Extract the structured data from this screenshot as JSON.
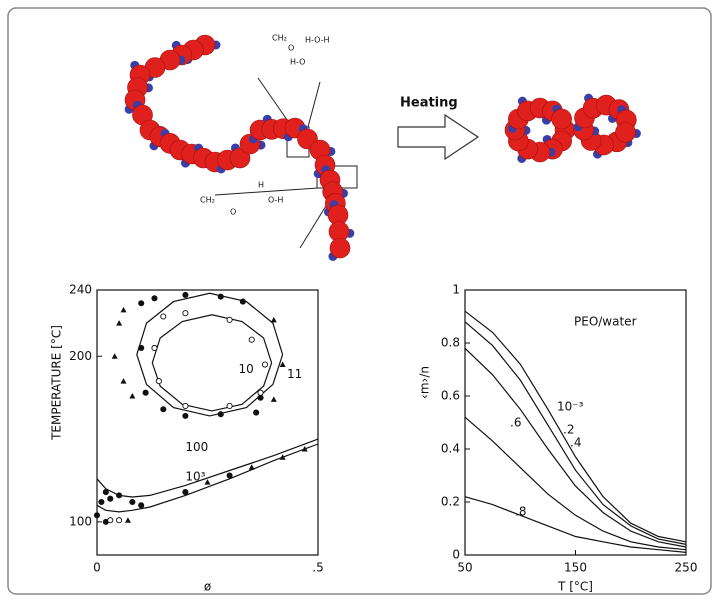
{
  "illustration": {
    "heating_label": "Heating",
    "top_fragments": [
      "CH₂",
      "O",
      "H-O-H",
      "H-O"
    ],
    "bottom_fragments": [
      "CH₂",
      "O",
      "H",
      "O-H"
    ]
  },
  "chart_data": [
    {
      "type": "scatter",
      "y_label": "TEMPERATURE [°C]",
      "x_label": "ø",
      "xlim": [
        0,
        0.5
      ],
      "ylim": [
        80,
        240
      ],
      "xticks": [
        0,
        {
          "value": 0.5,
          "label": ".5"
        }
      ],
      "yticks": [
        100,
        200,
        240
      ],
      "series": [
        {
          "name": "11",
          "mode": "line",
          "color": "#111111",
          "x": [
            0.42,
            0.398,
            0.338,
            0.255,
            0.173,
            0.112,
            0.09,
            0.112,
            0.173,
            0.255,
            0.338,
            0.398,
            0.42
          ],
          "values": [
            201,
            220,
            233,
            238,
            233,
            220,
            201,
            183,
            169,
            164,
            169,
            183,
            201
          ]
        },
        {
          "name": "10",
          "mode": "line",
          "color": "#111111",
          "x": [
            0.395,
            0.377,
            0.328,
            0.26,
            0.193,
            0.143,
            0.125,
            0.143,
            0.193,
            0.26,
            0.328,
            0.377,
            0.395
          ],
          "values": [
            196,
            211,
            221,
            225,
            221,
            211,
            196,
            182,
            171,
            167,
            171,
            182,
            196
          ]
        },
        {
          "name": "100",
          "mode": "line",
          "color": "#111111",
          "x": [
            0,
            0.02,
            0.05,
            0.08,
            0.12,
            0.2,
            0.3,
            0.4,
            0.5
          ],
          "values": [
            126,
            120,
            116,
            115,
            116,
            122,
            131,
            140,
            150
          ]
        },
        {
          "name": "10³",
          "mode": "line",
          "color": "#111111",
          "x": [
            0,
            0.02,
            0.05,
            0.08,
            0.12,
            0.2,
            0.3,
            0.4,
            0.5
          ],
          "values": [
            110,
            107,
            106,
            107,
            109,
            116,
            126,
            137,
            147
          ]
        },
        {
          "mode": "points",
          "marker": "circle",
          "color": "#111111",
          "x": [
            0.1,
            0.13,
            0.2,
            0.28,
            0.33,
            0.1,
            0.11,
            0.15,
            0.2,
            0.28,
            0.36,
            0.37,
            0.01,
            0.02,
            0.03,
            0.05,
            0.08,
            0.1,
            0.2,
            0.3,
            0,
            0.02
          ],
          "values": [
            232,
            235,
            237,
            236,
            233,
            205,
            178,
            168,
            164,
            165,
            166,
            175,
            112,
            118,
            114,
            116,
            112,
            110,
            118,
            128,
            104,
            100
          ]
        },
        {
          "mode": "points",
          "marker": "open-circle",
          "color": "#111111",
          "x": [
            0.15,
            0.2,
            0.3,
            0.35,
            0.38,
            0.37,
            0.3,
            0.2,
            0.14,
            0.13,
            0.03,
            0.05
          ],
          "values": [
            224,
            226,
            222,
            210,
            195,
            178,
            170,
            170,
            185,
            205,
            101,
            101
          ]
        },
        {
          "mode": "points",
          "marker": "triangle",
          "color": "#111111",
          "x": [
            0.06,
            0.05,
            0.04,
            0.06,
            0.08,
            0.4,
            0.42,
            0.4,
            0.25,
            0.35,
            0.42,
            0.47,
            0.07
          ],
          "values": [
            228,
            220,
            200,
            185,
            176,
            222,
            195,
            174,
            124,
            133,
            139,
            144,
            101
          ]
        }
      ]
    },
    {
      "type": "line",
      "y_label": "‹m›/n",
      "x_label": "T [°C]",
      "annotation": "PEO/water",
      "xlim": [
        50,
        250
      ],
      "ylim": [
        0,
        1
      ],
      "xticks": [
        50,
        150,
        250
      ],
      "yticks": [
        0,
        0.2,
        0.4,
        0.6,
        0.8,
        1
      ],
      "x": [
        50,
        75,
        100,
        125,
        150,
        175,
        200,
        225,
        250
      ],
      "series": [
        {
          "name": "10⁻³",
          "color": "#111111",
          "values": [
            0.92,
            0.84,
            0.72,
            0.55,
            0.37,
            0.22,
            0.12,
            0.07,
            0.05
          ]
        },
        {
          "name": ".2",
          "color": "#111111",
          "values": [
            0.88,
            0.79,
            0.66,
            0.49,
            0.32,
            0.19,
            0.11,
            0.06,
            0.04
          ]
        },
        {
          "name": ".4",
          "color": "#111111",
          "values": [
            0.78,
            0.68,
            0.55,
            0.4,
            0.26,
            0.16,
            0.09,
            0.05,
            0.03
          ]
        },
        {
          "name": ".6",
          "color": "#111111",
          "values": [
            0.52,
            0.43,
            0.33,
            0.23,
            0.15,
            0.09,
            0.05,
            0.03,
            0.02
          ]
        },
        {
          "name": ".8",
          "color": "#111111",
          "values": [
            0.22,
            0.19,
            0.15,
            0.11,
            0.07,
            0.05,
            0.03,
            0.02,
            0.01
          ]
        }
      ]
    }
  ]
}
